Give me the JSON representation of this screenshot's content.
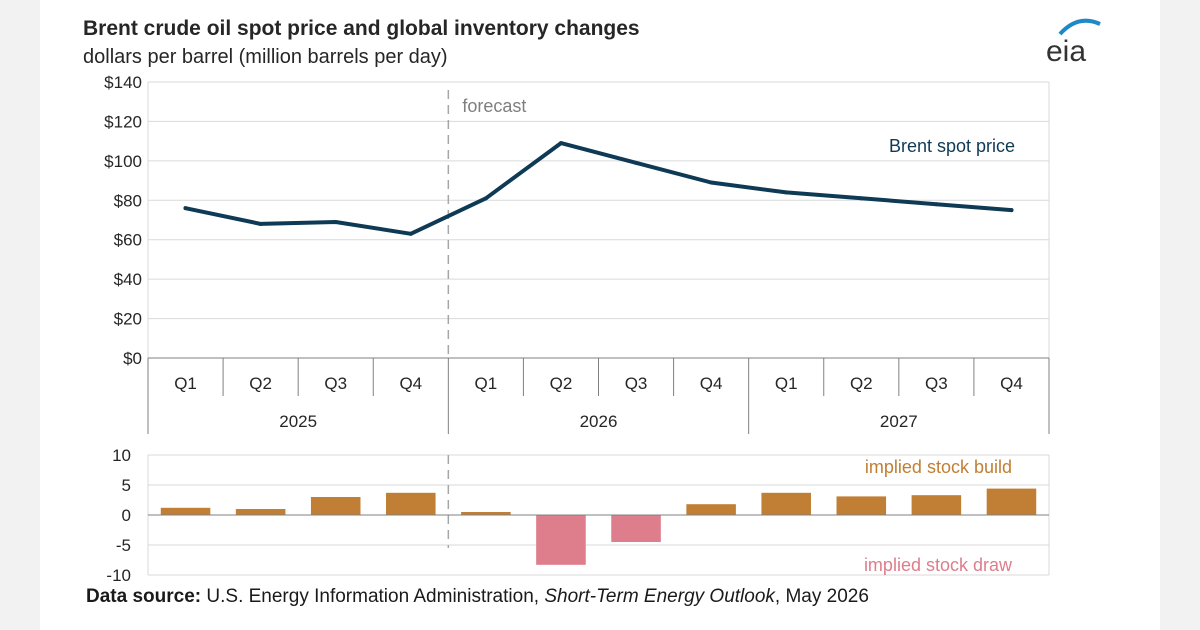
{
  "header": {
    "title": "Brent crude oil spot price and global inventory changes",
    "subtitle": "dollars per barrel (million barrels per day)"
  },
  "logo": {
    "text": "eia"
  },
  "source": {
    "label": "Data source:",
    "text": "U.S. Energy Information Administration,",
    "publication": "Short-Term Energy Outlook",
    "date": ", May 2026"
  },
  "colors": {
    "price_line": "#0f3a55",
    "stock_build": "#c07f34",
    "stock_draw": "#de7d8c",
    "grid": "#d9d9d9",
    "axis": "#808080",
    "logo_blue": "#1e89c9"
  },
  "chart_data": [
    {
      "type": "line",
      "categories": [
        "Q1",
        "Q2",
        "Q3",
        "Q4",
        "Q1",
        "Q2",
        "Q3",
        "Q4",
        "Q1",
        "Q2",
        "Q3",
        "Q4"
      ],
      "groups": [
        {
          "label": "2025",
          "quarters": 4
        },
        {
          "label": "2026",
          "quarters": 4
        },
        {
          "label": "2027",
          "quarters": 4
        }
      ],
      "series": [
        {
          "name": "Brent spot price",
          "values": [
            76,
            68,
            69,
            63,
            81,
            109,
            99,
            89,
            84,
            81,
            78,
            75
          ]
        }
      ],
      "forecast_label": "forecast",
      "forecast_starts_after_index": 3,
      "ylim": [
        0,
        140
      ],
      "yticks": [
        0,
        20,
        40,
        60,
        80,
        100,
        120,
        140
      ],
      "ytick_labels": [
        "$0",
        "$20",
        "$40",
        "$60",
        "$80",
        "$100",
        "$120",
        "$140"
      ],
      "grid": true
    },
    {
      "type": "bar",
      "categories": [
        "Q1",
        "Q2",
        "Q3",
        "Q4",
        "Q1",
        "Q2",
        "Q3",
        "Q4",
        "Q1",
        "Q2",
        "Q3",
        "Q4"
      ],
      "values": [
        1.2,
        1.0,
        3.0,
        3.7,
        0.5,
        -8.3,
        -4.5,
        1.8,
        3.7,
        3.1,
        3.3,
        4.4
      ],
      "positive_label": "implied stock build",
      "negative_label": "implied stock draw",
      "ylim": [
        -10,
        10
      ],
      "yticks": [
        -10,
        -5,
        0,
        5,
        10
      ],
      "ytick_labels": [
        "-10",
        "-5",
        "0",
        "5",
        "10"
      ],
      "grid": true
    }
  ]
}
